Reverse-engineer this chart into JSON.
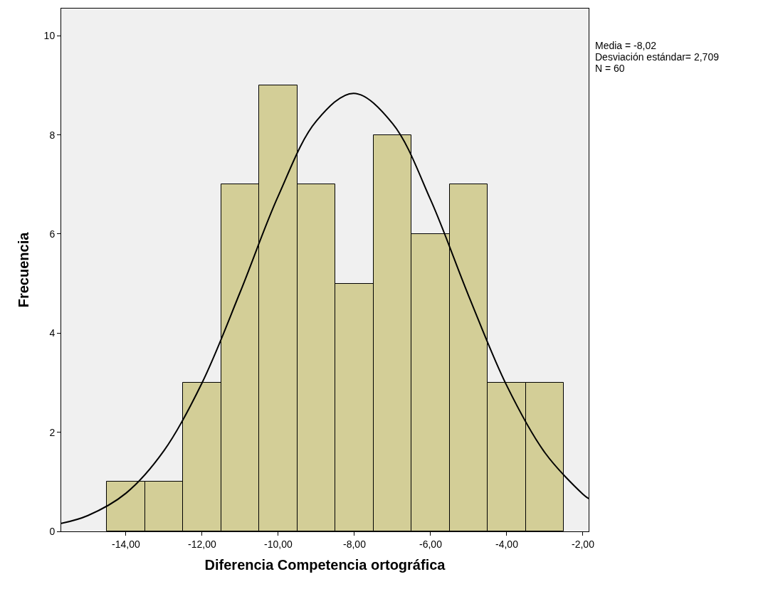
{
  "chart_data": {
    "type": "histogram",
    "xlabel": "Diferencia Competencia ortográfica",
    "ylabel": "Frecuencia",
    "bins": [
      -14.5,
      -13.5,
      -12.5,
      -11.5,
      -10.5,
      -9.5,
      -8.5,
      -7.5,
      -6.5,
      -5.5,
      -4.5,
      -3.5,
      -2.5
    ],
    "values": [
      1,
      1,
      3,
      7,
      9,
      7,
      5,
      8,
      6,
      7,
      3,
      3
    ],
    "color": "#d3ce97",
    "series": [
      {
        "type": "line",
        "color": "#000000",
        "x": [
          -15.7,
          -15,
          -14,
          -13,
          -12,
          -11,
          -10,
          -9,
          -8.02,
          -7,
          -6,
          -5,
          -4,
          -3,
          -2,
          -1.85
        ],
        "values": [
          0.16,
          0.32,
          0.77,
          1.63,
          3.0,
          4.83,
          6.77,
          8.28,
          8.84,
          8.23,
          6.69,
          4.75,
          2.94,
          1.59,
          0.75,
          0.66
        ]
      }
    ],
    "xlim": [
      -15.7,
      -1.85
    ],
    "xticks": [
      {
        "value": -14,
        "label": "-14,00"
      },
      {
        "value": -12,
        "label": "-12,00"
      },
      {
        "value": -10,
        "label": "-10,00"
      },
      {
        "value": -8,
        "label": "-8,00"
      },
      {
        "value": -6,
        "label": "-6,00"
      },
      {
        "value": -4,
        "label": "-4,00"
      },
      {
        "value": -2,
        "label": "-2,00"
      }
    ],
    "ylim": [
      0,
      10.55
    ],
    "yticks": [
      0,
      2,
      4,
      6,
      8,
      10
    ],
    "annotations": [
      "Media = -8,02",
      "Desviación estándar= 2,709",
      "N = 60"
    ],
    "grid": false
  }
}
